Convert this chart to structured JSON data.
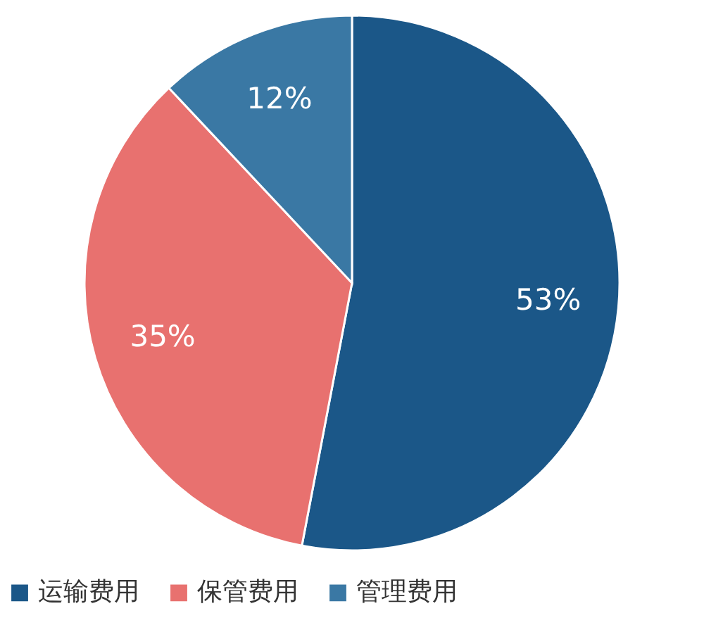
{
  "chart_data": {
    "type": "pie",
    "categories": [
      "运输费用",
      "保管费用",
      "管理费用"
    ],
    "values": [
      53,
      35,
      12
    ],
    "colors": [
      "#1b5788",
      "#e8716f",
      "#3a78a4"
    ],
    "value_labels": [
      "53%",
      "35%",
      "12%"
    ],
    "legend": "bottom"
  }
}
